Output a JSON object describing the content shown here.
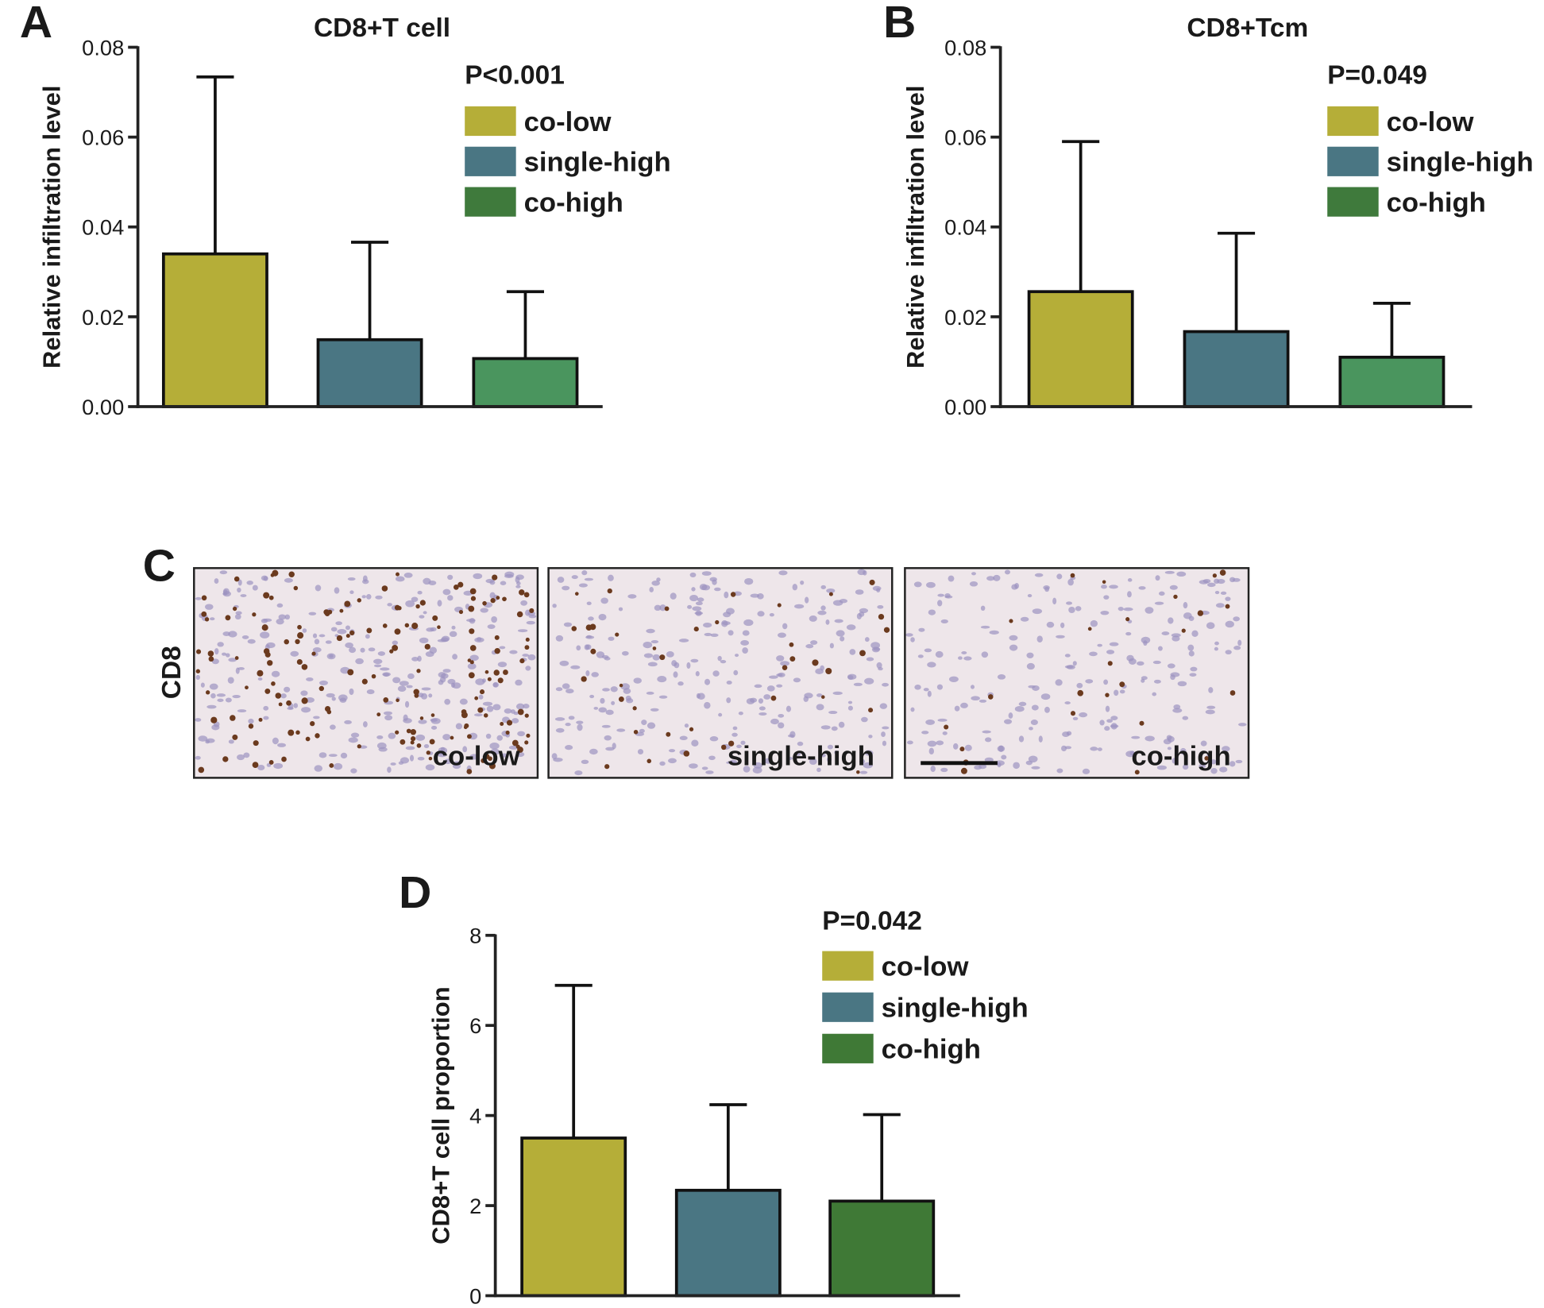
{
  "chart_data": [
    {
      "type": "bar",
      "panel_label": "A",
      "title": "CD8+T cell",
      "annotation": "P<0.001",
      "ylabel": "Relative infiltration level",
      "categories": [
        "co-low",
        "single-high",
        "co-high"
      ],
      "colors": [
        "#b5ae38",
        "#4a7683",
        "#4a955e"
      ],
      "legend_colors": [
        "#b5ae38",
        "#4a7683",
        "#3f7a3c"
      ],
      "values": [
        0.034,
        0.0149,
        0.0107
      ],
      "errors": [
        0.0394,
        0.0217,
        0.0149
      ],
      "ylim": [
        0,
        0.08
      ],
      "yticks": [
        {
          "value": 0,
          "label": "0.00"
        },
        {
          "value": 0.02,
          "label": "0.02"
        },
        {
          "value": 0.04,
          "label": "0.04"
        },
        {
          "value": 0.06,
          "label": "0.06"
        },
        {
          "value": 0.08,
          "label": "0.08"
        }
      ]
    },
    {
      "type": "bar",
      "panel_label": "B",
      "title": "CD8+Tcm",
      "annotation": "P=0.049",
      "ylabel": "Relative infiltration level",
      "categories": [
        "co-low",
        "single-high",
        "co-high"
      ],
      "colors": [
        "#b5ae38",
        "#4a7683",
        "#4a955e"
      ],
      "legend_colors": [
        "#b5ae38",
        "#4a7683",
        "#3f7a3c"
      ],
      "values": [
        0.0256,
        0.0167,
        0.011
      ],
      "errors": [
        0.0334,
        0.0219,
        0.012
      ],
      "ylim": [
        0,
        0.08
      ],
      "yticks": [
        {
          "value": 0,
          "label": "0.00"
        },
        {
          "value": 0.02,
          "label": "0.02"
        },
        {
          "value": 0.04,
          "label": "0.04"
        },
        {
          "value": 0.06,
          "label": "0.06"
        },
        {
          "value": 0.08,
          "label": "0.08"
        }
      ]
    },
    {
      "type": "bar",
      "panel_label": "D",
      "annotation": "P=0.042",
      "ylabel": "CD8+T cell proportion",
      "categories": [
        "co-low",
        "single-high",
        "co-high"
      ],
      "colors": [
        "#b5ae38",
        "#4a7683",
        "#3f7936"
      ],
      "legend_colors": [
        "#b5ae38",
        "#4a7683",
        "#3f7936"
      ],
      "values": [
        3.5,
        2.34,
        2.1
      ],
      "errors": [
        3.39,
        1.9,
        1.92
      ],
      "ylim": [
        0,
        8
      ],
      "yticks": [
        0,
        2,
        4,
        6,
        8
      ]
    }
  ],
  "images": {
    "panel_label": "C",
    "row_label": "CD8",
    "captions": [
      "co-low",
      "single-high",
      "co-high"
    ]
  }
}
